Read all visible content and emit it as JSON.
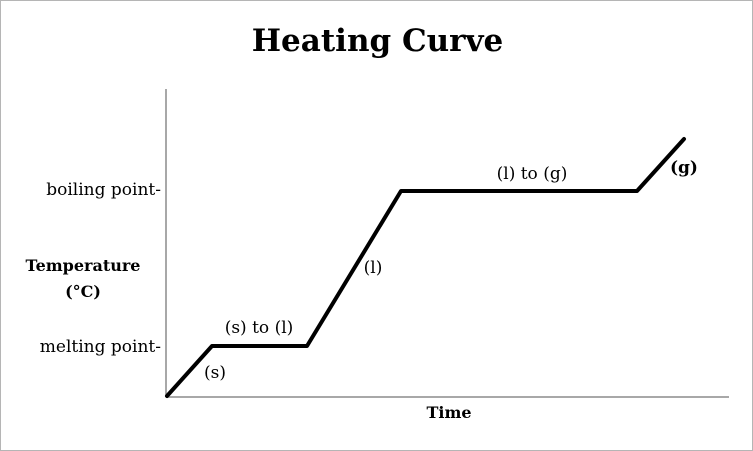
{
  "title": "Heating Curve",
  "ylabel_line1": "Temperature",
  "ylabel_line2": "(°C)",
  "xlabel": "Time",
  "y_ticks": {
    "boiling": "boiling point-",
    "melting": "melting point-"
  },
  "phase_labels": {
    "solid": "(s)",
    "solid_to_liquid": "(s) to (l)",
    "liquid": "(l)",
    "liquid_to_gas": "(l) to (g)",
    "gas": "(g)"
  },
  "colors": {
    "line": "#000000",
    "axis": "#8c8c8c",
    "border": "#b5b5b5"
  }
}
